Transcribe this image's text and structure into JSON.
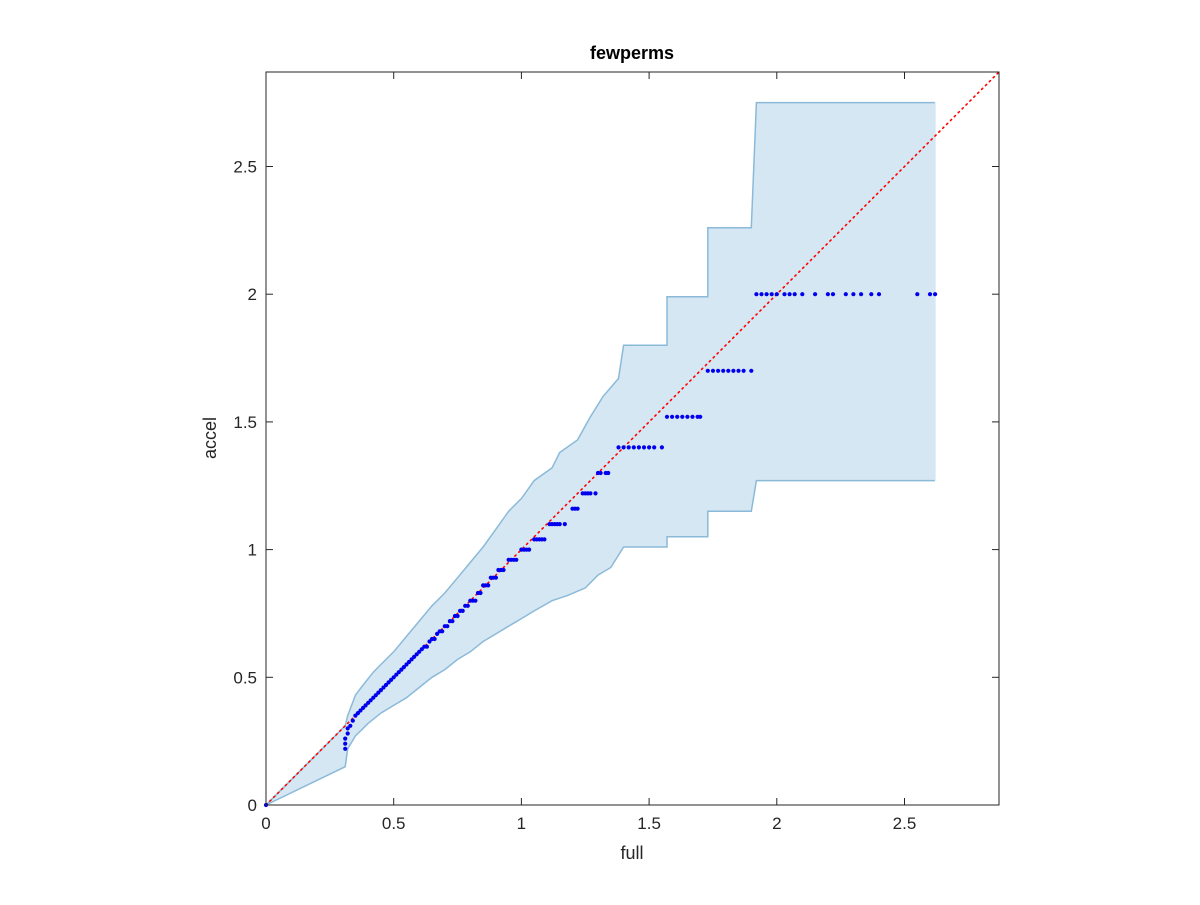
{
  "chart_data": {
    "type": "scatter",
    "title": "fewperms",
    "xlabel": "full",
    "ylabel": "accel",
    "xlim": [
      0,
      2.87
    ],
    "ylim": [
      0,
      2.87
    ],
    "xticks": [
      0,
      0.5,
      1,
      1.5,
      2,
      2.5
    ],
    "yticks": [
      0,
      0.5,
      1,
      1.5,
      2,
      2.5
    ],
    "xticklabels": [
      "0",
      "0.5",
      "1",
      "1.5",
      "2",
      "2.5"
    ],
    "yticklabels": [
      "0",
      "0.5",
      "1",
      "1.5",
      "2",
      "2.5"
    ],
    "grid": false,
    "band": {
      "color": "#d6e7f4",
      "edge_color": "#8bbad8",
      "upper": [
        [
          0,
          0
        ],
        [
          0.31,
          0.31
        ],
        [
          0.32,
          0.35
        ],
        [
          0.35,
          0.43
        ],
        [
          0.38,
          0.47
        ],
        [
          0.42,
          0.52
        ],
        [
          0.45,
          0.55
        ],
        [
          0.5,
          0.6
        ],
        [
          0.55,
          0.66
        ],
        [
          0.6,
          0.72
        ],
        [
          0.65,
          0.78
        ],
        [
          0.7,
          0.83
        ],
        [
          0.75,
          0.89
        ],
        [
          0.8,
          0.95
        ],
        [
          0.85,
          1.01
        ],
        [
          0.9,
          1.08
        ],
        [
          0.95,
          1.15
        ],
        [
          1.0,
          1.2
        ],
        [
          1.05,
          1.27
        ],
        [
          1.12,
          1.32
        ],
        [
          1.15,
          1.38
        ],
        [
          1.22,
          1.43
        ],
        [
          1.27,
          1.52
        ],
        [
          1.32,
          1.6
        ],
        [
          1.38,
          1.67
        ],
        [
          1.4,
          1.8
        ],
        [
          1.57,
          1.8
        ],
        [
          1.57,
          1.99
        ],
        [
          1.73,
          1.99
        ],
        [
          1.73,
          2.26
        ],
        [
          1.9,
          2.26
        ],
        [
          1.92,
          2.75
        ],
        [
          2.62,
          2.75
        ]
      ],
      "lower": [
        [
          0,
          0
        ],
        [
          0.31,
          0.15
        ],
        [
          0.32,
          0.22
        ],
        [
          0.35,
          0.27
        ],
        [
          0.4,
          0.32
        ],
        [
          0.45,
          0.36
        ],
        [
          0.5,
          0.39
        ],
        [
          0.55,
          0.42
        ],
        [
          0.6,
          0.46
        ],
        [
          0.65,
          0.5
        ],
        [
          0.7,
          0.53
        ],
        [
          0.75,
          0.57
        ],
        [
          0.8,
          0.6
        ],
        [
          0.85,
          0.64
        ],
        [
          0.9,
          0.67
        ],
        [
          0.95,
          0.7
        ],
        [
          1.0,
          0.73
        ],
        [
          1.05,
          0.76
        ],
        [
          1.12,
          0.8
        ],
        [
          1.18,
          0.82
        ],
        [
          1.25,
          0.85
        ],
        [
          1.3,
          0.9
        ],
        [
          1.35,
          0.93
        ],
        [
          1.4,
          1.01
        ],
        [
          1.57,
          1.01
        ],
        [
          1.57,
          1.05
        ],
        [
          1.73,
          1.05
        ],
        [
          1.73,
          1.15
        ],
        [
          1.9,
          1.15
        ],
        [
          1.92,
          1.27
        ],
        [
          2.62,
          1.27
        ]
      ]
    },
    "reference_line": {
      "from": [
        0,
        0
      ],
      "to": [
        2.87,
        2.87
      ],
      "color": "#ff0000",
      "style": "dotted"
    },
    "series": [
      {
        "color": "#0000ee",
        "points": [
          [
            0,
            0
          ],
          [
            0.31,
            0.22
          ],
          [
            0.31,
            0.24
          ],
          [
            0.31,
            0.26
          ],
          [
            0.32,
            0.28
          ],
          [
            0.32,
            0.3
          ],
          [
            0.33,
            0.31
          ],
          [
            0.34,
            0.33
          ],
          [
            0.35,
            0.35
          ],
          [
            0.36,
            0.36
          ],
          [
            0.37,
            0.37
          ],
          [
            0.38,
            0.38
          ],
          [
            0.39,
            0.39
          ],
          [
            0.4,
            0.4
          ],
          [
            0.41,
            0.41
          ],
          [
            0.42,
            0.42
          ],
          [
            0.43,
            0.43
          ],
          [
            0.44,
            0.44
          ],
          [
            0.45,
            0.45
          ],
          [
            0.46,
            0.46
          ],
          [
            0.47,
            0.47
          ],
          [
            0.48,
            0.48
          ],
          [
            0.49,
            0.49
          ],
          [
            0.5,
            0.5
          ],
          [
            0.51,
            0.51
          ],
          [
            0.52,
            0.52
          ],
          [
            0.53,
            0.53
          ],
          [
            0.54,
            0.54
          ],
          [
            0.55,
            0.55
          ],
          [
            0.56,
            0.56
          ],
          [
            0.57,
            0.57
          ],
          [
            0.58,
            0.58
          ],
          [
            0.59,
            0.59
          ],
          [
            0.6,
            0.6
          ],
          [
            0.61,
            0.61
          ],
          [
            0.62,
            0.62
          ],
          [
            0.63,
            0.62
          ],
          [
            0.64,
            0.64
          ],
          [
            0.65,
            0.65
          ],
          [
            0.66,
            0.65
          ],
          [
            0.67,
            0.67
          ],
          [
            0.68,
            0.68
          ],
          [
            0.69,
            0.68
          ],
          [
            0.7,
            0.7
          ],
          [
            0.71,
            0.7
          ],
          [
            0.72,
            0.72
          ],
          [
            0.73,
            0.72
          ],
          [
            0.74,
            0.74
          ],
          [
            0.75,
            0.74
          ],
          [
            0.76,
            0.76
          ],
          [
            0.77,
            0.76
          ],
          [
            0.78,
            0.78
          ],
          [
            0.79,
            0.78
          ],
          [
            0.8,
            0.8
          ],
          [
            0.81,
            0.8
          ],
          [
            0.82,
            0.8
          ],
          [
            0.83,
            0.83
          ],
          [
            0.84,
            0.83
          ],
          [
            0.85,
            0.86
          ],
          [
            0.86,
            0.86
          ],
          [
            0.87,
            0.86
          ],
          [
            0.88,
            0.89
          ],
          [
            0.89,
            0.89
          ],
          [
            0.9,
            0.89
          ],
          [
            0.91,
            0.92
          ],
          [
            0.92,
            0.92
          ],
          [
            0.93,
            0.92
          ],
          [
            0.95,
            0.96
          ],
          [
            0.96,
            0.96
          ],
          [
            0.97,
            0.96
          ],
          [
            0.98,
            0.96
          ],
          [
            1.0,
            1.0
          ],
          [
            1.01,
            1.0
          ],
          [
            1.02,
            1.0
          ],
          [
            1.03,
            1.0
          ],
          [
            1.05,
            1.04
          ],
          [
            1.06,
            1.04
          ],
          [
            1.07,
            1.04
          ],
          [
            1.08,
            1.04
          ],
          [
            1.09,
            1.04
          ],
          [
            1.11,
            1.1
          ],
          [
            1.12,
            1.1
          ],
          [
            1.13,
            1.1
          ],
          [
            1.14,
            1.1
          ],
          [
            1.15,
            1.1
          ],
          [
            1.17,
            1.1
          ],
          [
            1.2,
            1.16
          ],
          [
            1.21,
            1.16
          ],
          [
            1.22,
            1.16
          ],
          [
            1.24,
            1.22
          ],
          [
            1.25,
            1.22
          ],
          [
            1.26,
            1.22
          ],
          [
            1.27,
            1.22
          ],
          [
            1.29,
            1.22
          ],
          [
            1.3,
            1.3
          ],
          [
            1.31,
            1.3
          ],
          [
            1.33,
            1.3
          ],
          [
            1.34,
            1.3
          ],
          [
            1.38,
            1.4
          ],
          [
            1.4,
            1.4
          ],
          [
            1.42,
            1.4
          ],
          [
            1.44,
            1.4
          ],
          [
            1.46,
            1.4
          ],
          [
            1.48,
            1.4
          ],
          [
            1.5,
            1.4
          ],
          [
            1.52,
            1.4
          ],
          [
            1.55,
            1.4
          ],
          [
            1.57,
            1.52
          ],
          [
            1.59,
            1.52
          ],
          [
            1.61,
            1.52
          ],
          [
            1.63,
            1.52
          ],
          [
            1.65,
            1.52
          ],
          [
            1.67,
            1.52
          ],
          [
            1.69,
            1.52
          ],
          [
            1.7,
            1.52
          ],
          [
            1.73,
            1.7
          ],
          [
            1.75,
            1.7
          ],
          [
            1.77,
            1.7
          ],
          [
            1.79,
            1.7
          ],
          [
            1.81,
            1.7
          ],
          [
            1.83,
            1.7
          ],
          [
            1.85,
            1.7
          ],
          [
            1.87,
            1.7
          ],
          [
            1.9,
            1.7
          ],
          [
            1.92,
            2.0
          ],
          [
            1.94,
            2.0
          ],
          [
            1.96,
            2.0
          ],
          [
            1.98,
            2.0
          ],
          [
            2.0,
            2.0
          ],
          [
            2.03,
            2.0
          ],
          [
            2.05,
            2.0
          ],
          [
            2.07,
            2.0
          ],
          [
            2.1,
            2.0
          ],
          [
            2.15,
            2.0
          ],
          [
            2.2,
            2.0
          ],
          [
            2.22,
            2.0
          ],
          [
            2.27,
            2.0
          ],
          [
            2.3,
            2.0
          ],
          [
            2.33,
            2.0
          ],
          [
            2.37,
            2.0
          ],
          [
            2.4,
            2.0
          ],
          [
            2.55,
            2.0
          ],
          [
            2.6,
            2.0
          ],
          [
            2.62,
            2.0
          ]
        ]
      }
    ]
  }
}
